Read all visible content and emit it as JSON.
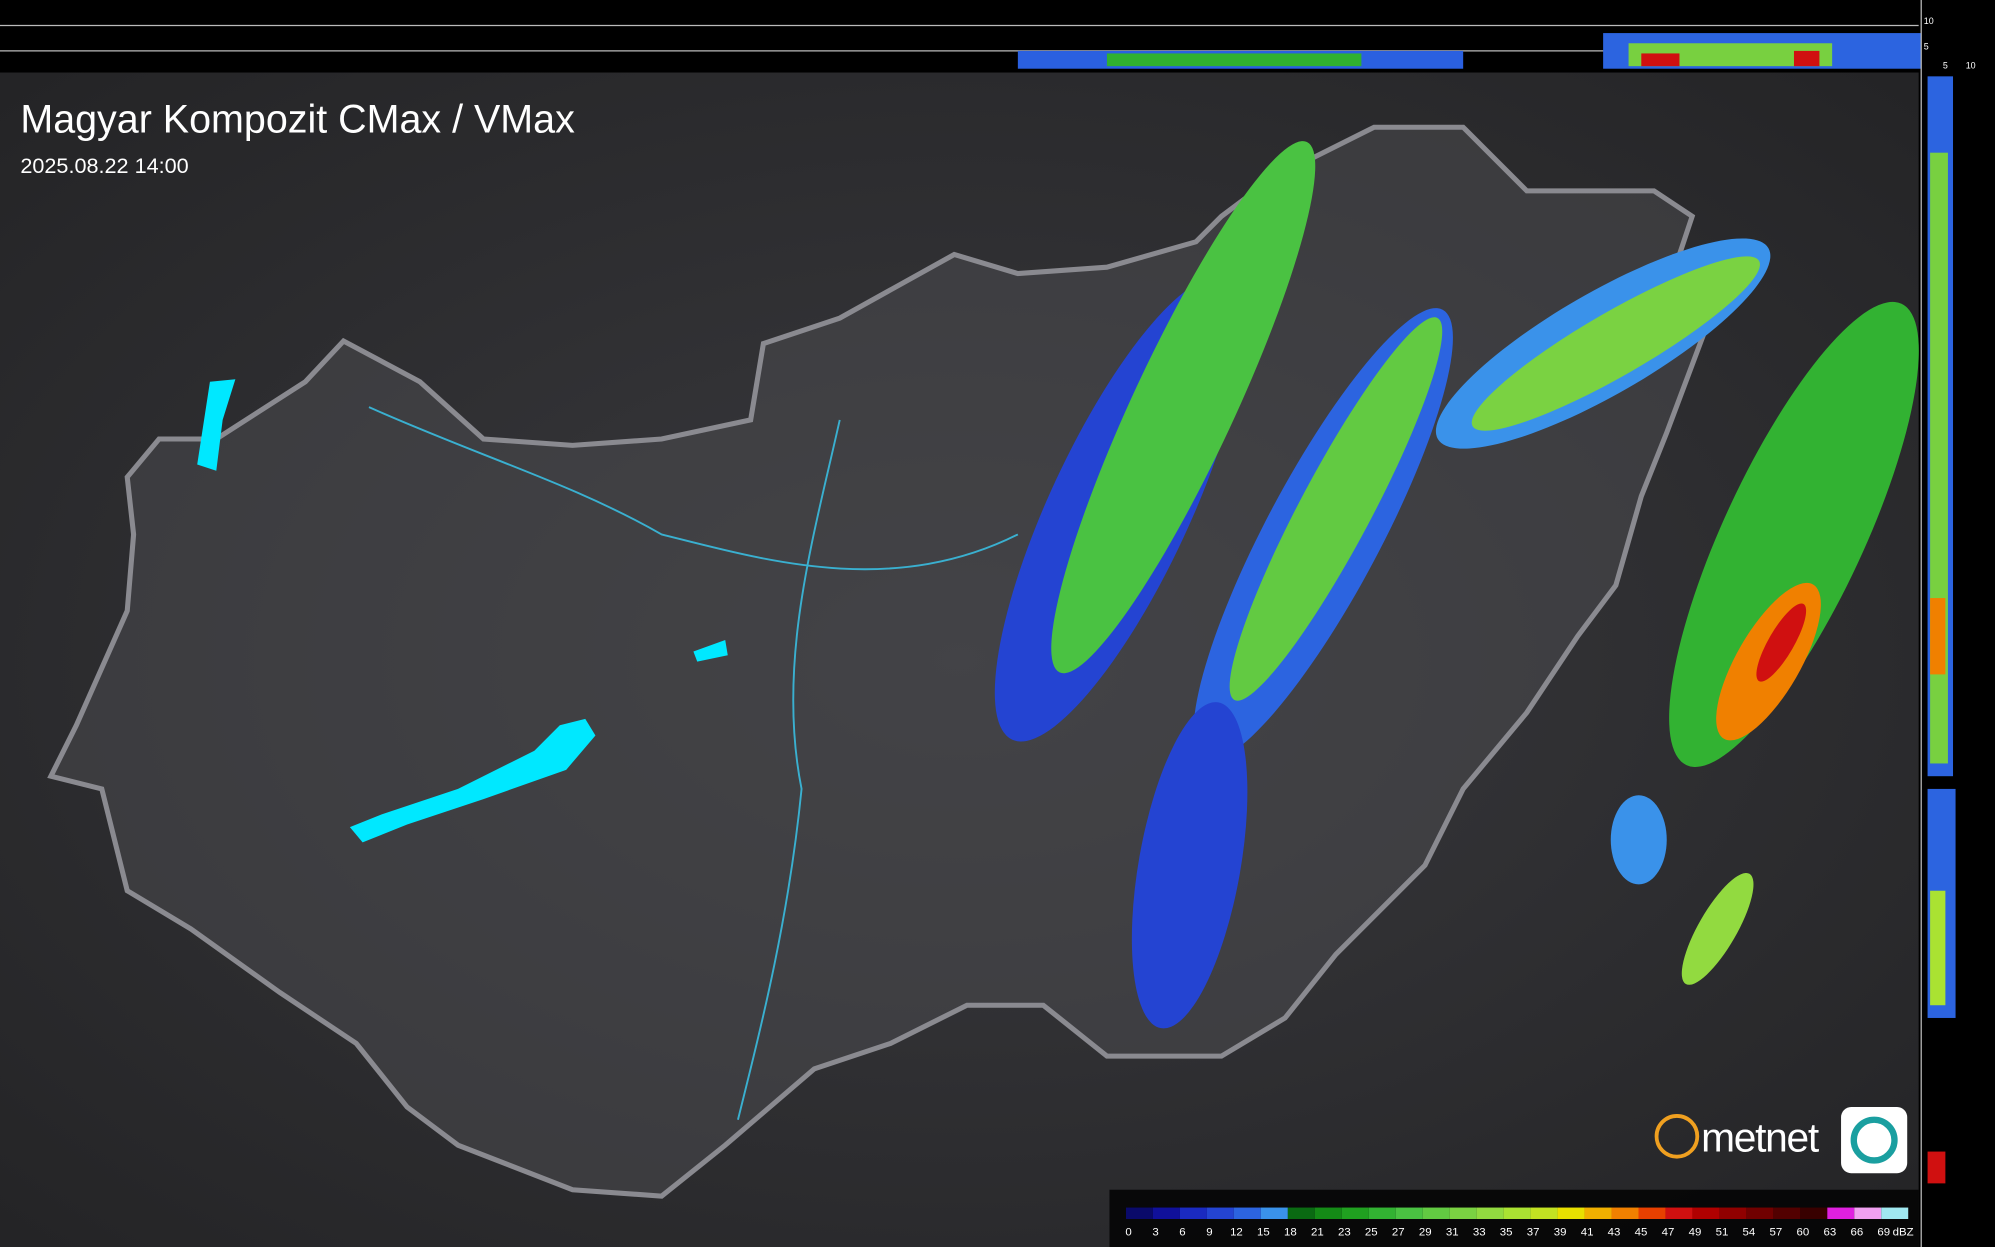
{
  "header": {
    "title": "Magyar Kompozit CMax / VMax",
    "timestamp": "2025.08.22 14:00"
  },
  "profile": {
    "top_ticks": [
      10,
      5
    ],
    "side_ticks": [
      5,
      10
    ]
  },
  "logo": {
    "text": "metnet"
  },
  "legend": {
    "unit": "dBZ",
    "labels": [
      0,
      3,
      6,
      9,
      12,
      15,
      18,
      21,
      23,
      25,
      27,
      29,
      31,
      33,
      35,
      37,
      39,
      41,
      43,
      45,
      47,
      49,
      51,
      54,
      57,
      60,
      63,
      66,
      69
    ],
    "colors": [
      "#0a0a6a",
      "#10109a",
      "#1a2ac0",
      "#2444d2",
      "#2c64e0",
      "#3a92ea",
      "#0a6a12",
      "#148a16",
      "#20a020",
      "#32b232",
      "#4ac242",
      "#62ca42",
      "#7ad242",
      "#92da40",
      "#aae232",
      "#c2e222",
      "#e8e000",
      "#f0b000",
      "#f08000",
      "#e84000",
      "#d01010",
      "#b00000",
      "#900000",
      "#700000",
      "#520000",
      "#380000",
      "#e020e0",
      "#f0a0f0",
      "#a0e8f0"
    ]
  }
}
